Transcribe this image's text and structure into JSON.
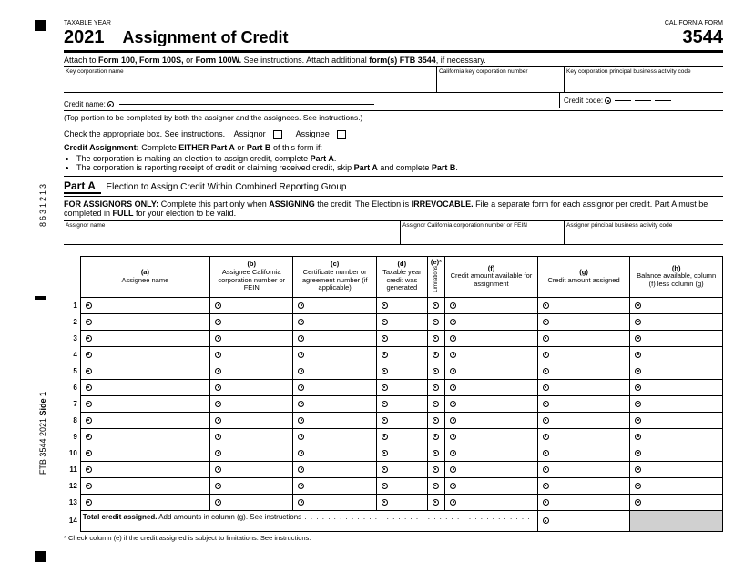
{
  "header": {
    "taxable_year_label": "TAXABLE YEAR",
    "california_form_label": "CALIFORNIA FORM",
    "year": "2021",
    "title": "Assignment of Credit",
    "form_number": "3544",
    "attach_prefix": "Attach to ",
    "attach_bold": "Form 100, Form 100S,",
    "attach_mid": " or ",
    "attach_bold2": "Form 100W.",
    "attach_suffix": " See instructions. Attach additional ",
    "attach_bold3": "form(s) FTB 3544",
    "attach_end": ", if necessary."
  },
  "key_fields": {
    "corp_name": "Key corporation name",
    "corp_number": "California key corporation number",
    "activity_code": "Key corporation principal business activity code",
    "credit_name": "Credit name:",
    "credit_code": "Credit code:"
  },
  "notes": {
    "top_portion": "(Top portion to be completed by both the assignor and the assignees. See instructions.)",
    "check_box": "Check the appropriate box. See instructions.",
    "assignor": "Assignor",
    "assignee": "Assignee",
    "credit_assignment_label": "Credit Assignment:",
    "credit_assignment_text": " Complete ",
    "either_part": "EITHER Part A",
    "or": " or ",
    "part_b": "Part B",
    "of_form": " of this form if:",
    "bullet1a": "The corporation is making an election to assign credit, complete ",
    "bullet1b": "Part A",
    "bullet1c": ".",
    "bullet2a": "The corporation is reporting receipt of credit or claiming received credit, skip ",
    "bullet2b": "Part A",
    "bullet2c": " and complete ",
    "bullet2d": "Part B",
    "bullet2e": "."
  },
  "part_a": {
    "label": "Part A",
    "title": "Election to Assign Credit Within Combined Reporting Group",
    "assignors_bold": "FOR ASSIGNORS ONLY:",
    "assignors_text1": " Complete this part only when ",
    "assigning": "ASSIGNING",
    "assignors_text2": " the credit. The Election is ",
    "irrevocable": "IRREVOCABLE.",
    "assignors_text3": " File a separate form for each assignor per credit. Part A must be completed in ",
    "full": "FULL",
    "assignors_text4": " for your election to be valid."
  },
  "assignor_fields": {
    "name": "Assignor name",
    "number": "Assignor California corporation number or FEIN",
    "activity": "Assignor principal business activity code"
  },
  "table": {
    "cols": {
      "a": "(a)\nAssignee name",
      "b": "(b)\nAssignee California corporation number or FEIN",
      "c": "(c)\nCertificate number or agreement number (if applicable)",
      "d": "(d)\nTaxable year credit was generated",
      "e": "(e)*",
      "e_sub": "Limitations",
      "f": "(f)\nCredit amount available for assignment",
      "g": "(g)\nCredit amount assigned",
      "h": "(h)\nBalance available, column (f) less column (g)"
    },
    "rows": [
      "1",
      "2",
      "3",
      "4",
      "5",
      "6",
      "7",
      "8",
      "9",
      "10",
      "11",
      "12",
      "13"
    ],
    "total_num": "14",
    "total_bold": "Total credit assigned.",
    "total_text": " Add amounts in column (g). See instructions",
    "dots": " . . . . . . . . . . . . . . . . . . . . . . . . . . . . . . . . . . . . . . . . . . . . . . . . . . . . . . . . . . . . . . ."
  },
  "footnote": "* Check column (e) if the credit assigned is subject to limitations. See instructions.",
  "margins": {
    "code": "8631213",
    "side": "FTB 3544 2021 ",
    "side_bold": "Side 1"
  },
  "colors": {
    "text": "#000000",
    "bg": "#ffffff",
    "shade": "#d0d0d0"
  }
}
